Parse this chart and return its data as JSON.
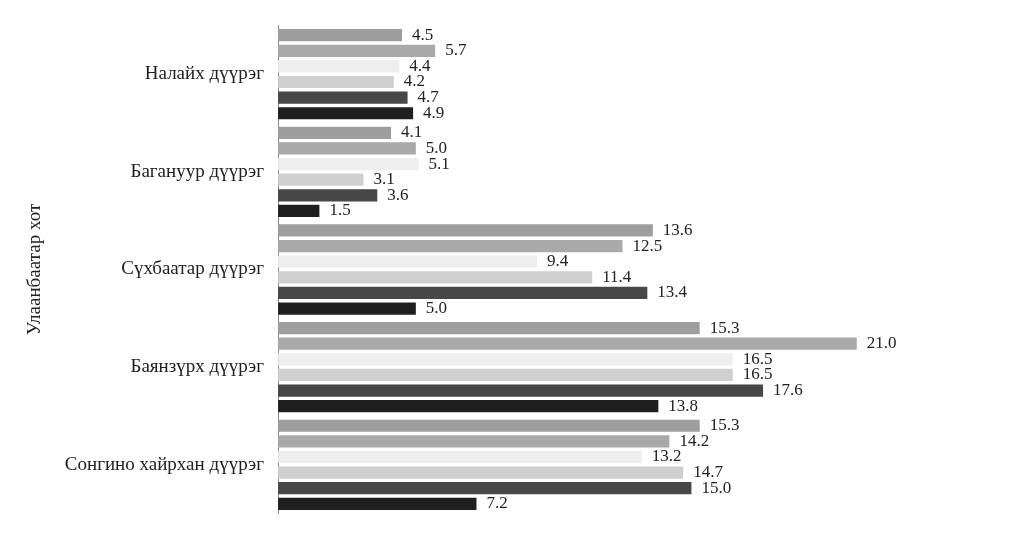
{
  "chart_data": {
    "type": "bar",
    "orientation": "horizontal",
    "ylabel": "Улаанбаатар хот",
    "categories": [
      "Налайх дүүрэг",
      "Багануур дүүрэг",
      "Сүхбаатар дүүрэг",
      "Баянзүрх дүүрэг",
      "Сонгино хайрхан дүүрэг"
    ],
    "series": [
      {
        "color": "#9e9e9e",
        "values": [
          4.5,
          4.1,
          13.6,
          15.3,
          15.3
        ],
        "value_labels": [
          "4.5",
          "4.1",
          "13.6",
          "15.3",
          "15.3"
        ]
      },
      {
        "color": "#a9a9a9",
        "values": [
          5.7,
          5.0,
          12.5,
          21.0,
          14.2
        ],
        "value_labels": [
          "5.7",
          "5.0",
          "12.5",
          "21.0",
          "14.2"
        ]
      },
      {
        "color": "#eeeeee",
        "values": [
          4.4,
          5.1,
          9.4,
          16.5,
          13.2
        ],
        "value_labels": [
          "4.4",
          "5.1",
          "9.4",
          "16.5",
          "13.2"
        ]
      },
      {
        "color": "#cfcfcf",
        "values": [
          4.2,
          3.1,
          11.4,
          16.5,
          14.7
        ],
        "value_labels": [
          "4.2",
          "3.1",
          "11.4",
          "16.5",
          "14.7"
        ]
      },
      {
        "color": "#474747",
        "values": [
          4.7,
          3.6,
          13.4,
          17.6,
          15.0
        ],
        "value_labels": [
          "4.7",
          "3.6",
          "13.4",
          "17.6",
          "15.0"
        ]
      },
      {
        "color": "#1f1f1f",
        "values": [
          4.9,
          1.5,
          5.0,
          13.8,
          7.2
        ],
        "value_labels": [
          "4.9",
          "1.5",
          "5.0",
          "13.8",
          "7.2"
        ]
      }
    ],
    "legend": false,
    "grid": false,
    "tick_labels": "y"
  }
}
